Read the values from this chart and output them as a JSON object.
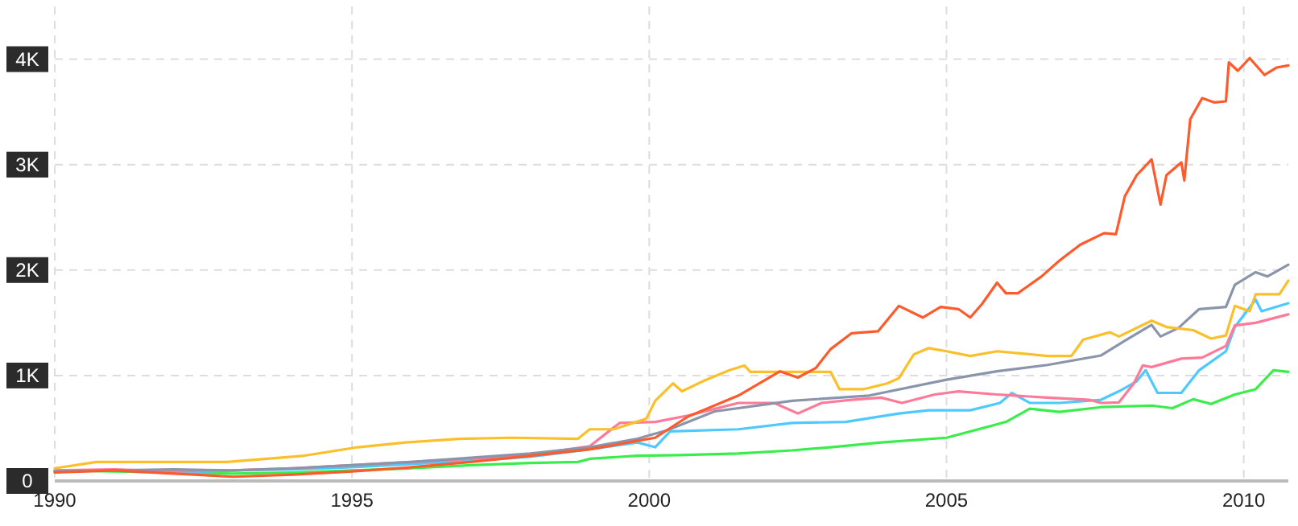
{
  "chart_data": {
    "type": "line",
    "xlim": [
      1990,
      2010.75
    ],
    "ylim": [
      0,
      4500
    ],
    "xticks": [
      1990,
      1995,
      2000,
      2005,
      2010
    ],
    "yticks": [
      {
        "value": 0,
        "label": "0"
      },
      {
        "value": 1000,
        "label": "1K"
      },
      {
        "value": 2000,
        "label": "2K"
      },
      {
        "value": 3000,
        "label": "3K"
      },
      {
        "value": 4000,
        "label": "4K"
      }
    ],
    "grid": true,
    "line_style": "solid",
    "series": [
      {
        "color": "#39ee4a",
        "x": [
          1990,
          1991,
          1992,
          1993,
          1994,
          1995,
          1996,
          1997,
          1998,
          1998.8,
          1999,
          1999.8,
          2000.5,
          2001.5,
          2002.4,
          2003.05,
          2003.9,
          2005,
          2005.7,
          2006,
          2006.4,
          2006.9,
          2007.6,
          2008.45,
          2008.8,
          2009.15,
          2009.45,
          2009.85,
          2010.2,
          2010.5,
          2010.75
        ],
        "values": [
          100,
          90,
          80,
          70,
          80,
          100,
          120,
          150,
          170,
          180,
          210,
          240,
          245,
          260,
          290,
          320,
          365,
          410,
          515,
          560,
          685,
          655,
          700,
          715,
          690,
          775,
          730,
          820,
          870,
          1050,
          1035
        ]
      },
      {
        "color": "#4dc9ff",
        "x": [
          1990,
          1991,
          1992,
          1993,
          1994,
          1995,
          1996,
          1997,
          1998,
          1999,
          1999.8,
          2000.1,
          2000.35,
          2001.5,
          2002.4,
          2003.3,
          2004.2,
          2004.7,
          2005.4,
          2005.9,
          2006.1,
          2006.4,
          2006.9,
          2007.6,
          2007.9,
          2008.2,
          2008.35,
          2008.55,
          2008.95,
          2009.25,
          2009.7,
          2009.85,
          2010.2,
          2010.3,
          2010.75
        ],
        "values": [
          90,
          100,
          80,
          100,
          110,
          130,
          160,
          190,
          230,
          300,
          365,
          320,
          470,
          490,
          550,
          560,
          640,
          670,
          670,
          740,
          835,
          740,
          740,
          770,
          850,
          945,
          1050,
          835,
          835,
          1050,
          1230,
          1460,
          1720,
          1610,
          1685
        ]
      },
      {
        "color": "#ff7a99",
        "x": [
          1990,
          1991,
          1992,
          1993,
          1994,
          1995,
          1996,
          1997,
          1998,
          1999,
          1999.5,
          2000.1,
          2000.65,
          2001.5,
          2002.1,
          2002.5,
          2002.9,
          2003.4,
          2003.9,
          2004.25,
          2004.8,
          2005.2,
          2005.85,
          2006.7,
          2007.4,
          2007.6,
          2007.9,
          2008.15,
          2008.3,
          2008.45,
          2008.95,
          2009.3,
          2009.7,
          2009.85,
          2010.2,
          2010.75
        ],
        "values": [
          100,
          110,
          90,
          100,
          120,
          150,
          180,
          210,
          250,
          330,
          550,
          560,
          620,
          740,
          740,
          640,
          740,
          770,
          790,
          740,
          820,
          850,
          820,
          790,
          770,
          740,
          745,
          925,
          1095,
          1080,
          1160,
          1170,
          1280,
          1475,
          1500,
          1580
        ]
      },
      {
        "color": "#8a94aa",
        "x": [
          1990,
          1991,
          1992,
          1993,
          1994,
          1995,
          1996,
          1997,
          1998,
          1999,
          1999.8,
          2000.3,
          2001.1,
          2002.4,
          2003.7,
          2005,
          2005.85,
          2006.7,
          2007.6,
          2008,
          2008.45,
          2008.6,
          2008.9,
          2009.25,
          2009.7,
          2009.85,
          2010.2,
          2010.4,
          2010.75
        ],
        "values": [
          90,
          100,
          110,
          100,
          120,
          150,
          180,
          220,
          260,
          320,
          400,
          480,
          660,
          760,
          810,
          960,
          1040,
          1100,
          1190,
          1330,
          1480,
          1370,
          1450,
          1630,
          1650,
          1860,
          1980,
          1940,
          2050
        ]
      },
      {
        "color": "#fbbf2a",
        "x": [
          1990,
          1990.7,
          1992.9,
          1994.2,
          1995.1,
          1995.9,
          1996.8,
          1997.7,
          1998.8,
          1999,
          1999.4,
          1999.95,
          2000.1,
          2000.4,
          2000.55,
          2000.9,
          2001.35,
          2001.6,
          2001.7,
          2003.05,
          2003.2,
          2003.6,
          2004,
          2004.2,
          2004.45,
          2004.7,
          2005,
          2005.4,
          2005.85,
          2006.7,
          2007.1,
          2007.3,
          2007.75,
          2007.9,
          2008.45,
          2008.7,
          2009.15,
          2009.45,
          2009.7,
          2009.85,
          2010.1,
          2010.2,
          2010.6,
          2010.75
        ],
        "values": [
          120,
          180,
          180,
          240,
          320,
          365,
          400,
          410,
          400,
          490,
          490,
          590,
          760,
          925,
          850,
          945,
          1050,
          1095,
          1035,
          1035,
          870,
          870,
          925,
          975,
          1200,
          1260,
          1230,
          1185,
          1230,
          1185,
          1185,
          1340,
          1410,
          1370,
          1520,
          1460,
          1430,
          1350,
          1380,
          1660,
          1610,
          1770,
          1770,
          1900
        ]
      },
      {
        "color": "#ff5a2b",
        "x": [
          1990,
          1991,
          1992,
          1993,
          1994,
          1995,
          1996,
          1997,
          1998,
          1999,
          1999.8,
          2000.1,
          2000.65,
          2001.5,
          2002.2,
          2002.5,
          2002.8,
          2003.05,
          2003.4,
          2003.85,
          2004.2,
          2004.6,
          2004.9,
          2005.2,
          2005.4,
          2005.6,
          2005.85,
          2006,
          2006.2,
          2006.6,
          2006.9,
          2007.25,
          2007.65,
          2007.85,
          2008,
          2008.2,
          2008.45,
          2008.6,
          2008.7,
          2008.95,
          2009,
          2009.1,
          2009.3,
          2009.5,
          2009.7,
          2009.75,
          2009.9,
          2010.1,
          2010.35,
          2010.55,
          2010.75
        ],
        "values": [
          80,
          100,
          70,
          40,
          60,
          90,
          130,
          180,
          240,
          300,
          380,
          410,
          610,
          810,
          1040,
          980,
          1070,
          1250,
          1400,
          1420,
          1660,
          1550,
          1650,
          1630,
          1550,
          1680,
          1880,
          1780,
          1780,
          1940,
          2090,
          2240,
          2350,
          2340,
          2700,
          2900,
          3050,
          2620,
          2900,
          3020,
          2850,
          3430,
          3630,
          3590,
          3600,
          3970,
          3890,
          4010,
          3850,
          3920,
          3940
        ]
      }
    ]
  }
}
